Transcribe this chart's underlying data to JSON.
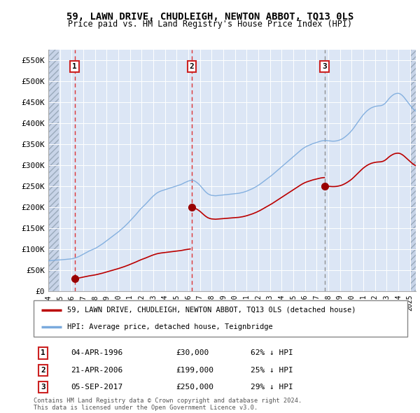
{
  "title": "59, LAWN DRIVE, CHUDLEIGH, NEWTON ABBOT, TQ13 0LS",
  "subtitle": "Price paid vs. HM Land Registry's House Price Index (HPI)",
  "xlim_start": 1994.0,
  "xlim_end": 2025.5,
  "ylim_min": 0,
  "ylim_max": 575000,
  "yticks": [
    0,
    50000,
    100000,
    150000,
    200000,
    250000,
    300000,
    350000,
    400000,
    450000,
    500000,
    550000
  ],
  "ytick_labels": [
    "£0",
    "£50K",
    "£100K",
    "£150K",
    "£200K",
    "£250K",
    "£300K",
    "£350K",
    "£400K",
    "£450K",
    "£500K",
    "£550K"
  ],
  "xticks": [
    1994,
    1995,
    1996,
    1997,
    1998,
    1999,
    2000,
    2001,
    2002,
    2003,
    2004,
    2005,
    2006,
    2007,
    2008,
    2009,
    2010,
    2011,
    2012,
    2013,
    2014,
    2015,
    2016,
    2017,
    2018,
    2019,
    2020,
    2021,
    2022,
    2023,
    2024,
    2025
  ],
  "sale_dates": [
    1996.25,
    2006.29,
    2017.67
  ],
  "sale_prices": [
    30000,
    199000,
    250000
  ],
  "sale_labels": [
    "1",
    "2",
    "3"
  ],
  "sale_vline_colors": [
    "#dd2222",
    "#dd2222",
    "#888888"
  ],
  "sale_vline_styles": [
    "--",
    "--",
    "--"
  ],
  "sale_info": [
    {
      "label": "1",
      "date": "04-APR-1996",
      "price": "£30,000",
      "hpi": "62% ↓ HPI"
    },
    {
      "label": "2",
      "date": "21-APR-2006",
      "price": "£199,000",
      "hpi": "25% ↓ HPI"
    },
    {
      "label": "3",
      "date": "05-SEP-2017",
      "price": "£250,000",
      "hpi": "29% ↓ HPI"
    }
  ],
  "red_line_color": "#bb0000",
  "blue_line_color": "#7aaadd",
  "sale_dot_color": "#990000",
  "background_plot": "#dce6f5",
  "background_hatch": "#c8d4e8",
  "legend_label_red": "59, LAWN DRIVE, CHUDLEIGH, NEWTON ABBOT, TQ13 0LS (detached house)",
  "legend_label_blue": "HPI: Average price, detached house, Teignbridge",
  "footer": "Contains HM Land Registry data © Crown copyright and database right 2024.\nThis data is licensed under the Open Government Licence v3.0.",
  "hpi_base_values": [
    72000,
    72500,
    73000,
    73500,
    74000,
    74200,
    74400,
    74800,
    75200,
    75600,
    76000,
    76500,
    77000,
    78000,
    79500,
    81000,
    83000,
    85500,
    88000,
    90500,
    93000,
    95500,
    97500,
    99500,
    101500,
    104000,
    107000,
    110000,
    113000,
    116500,
    120000,
    123500,
    127000,
    130500,
    134000,
    137500,
    141000,
    145000,
    149000,
    153000,
    157500,
    162000,
    167000,
    172000,
    177000,
    182000,
    187500,
    193000,
    198000,
    202500,
    207000,
    212000,
    217000,
    222000,
    226500,
    230500,
    234000,
    236500,
    238500,
    240000,
    241500,
    243000,
    244500,
    246000,
    247500,
    249000,
    250500,
    252000,
    253500,
    255500,
    258000,
    260000,
    262000,
    263500,
    264000,
    263000,
    260000,
    256500,
    252000,
    246500,
    241000,
    236000,
    232000,
    229500,
    228000,
    227500,
    227000,
    227500,
    228000,
    228500,
    229000,
    229500,
    230000,
    230500,
    231000,
    231500,
    232000,
    232500,
    233000,
    234000,
    235000,
    236500,
    238000,
    240000,
    242000,
    244000,
    246500,
    249000,
    252000,
    255000,
    258500,
    262000,
    265500,
    269000,
    272500,
    276000,
    280000,
    284000,
    288000,
    292000,
    296000,
    300000,
    304000,
    308000,
    312000,
    316000,
    320000,
    324000,
    328000,
    332000,
    336000,
    339500,
    342500,
    345000,
    347000,
    349000,
    351000,
    352500,
    354000,
    355500,
    357000,
    358000,
    358500,
    358500,
    358000,
    357500,
    357000,
    357000,
    357500,
    358500,
    360000,
    362000,
    365000,
    368500,
    372500,
    377000,
    382000,
    388000,
    394500,
    401000,
    407500,
    414000,
    420000,
    425000,
    429500,
    433000,
    436000,
    438000,
    439500,
    440500,
    441000,
    441500,
    443000,
    446000,
    451000,
    457000,
    462000,
    466000,
    469000,
    470500,
    471000,
    469500,
    466000,
    461000,
    455000,
    449000,
    443000,
    437000,
    432000,
    428000,
    425000,
    423000,
    422000,
    422000,
    423000,
    424000,
    425000
  ],
  "hpi_base_start_year": 1994.0,
  "hpi_base_step": 0.166667,
  "sale1_year": 1996.25,
  "sale1_price": 30000,
  "sale2_year": 2006.29,
  "sale2_price": 199000,
  "sale3_year": 2017.67,
  "sale3_price": 250000
}
